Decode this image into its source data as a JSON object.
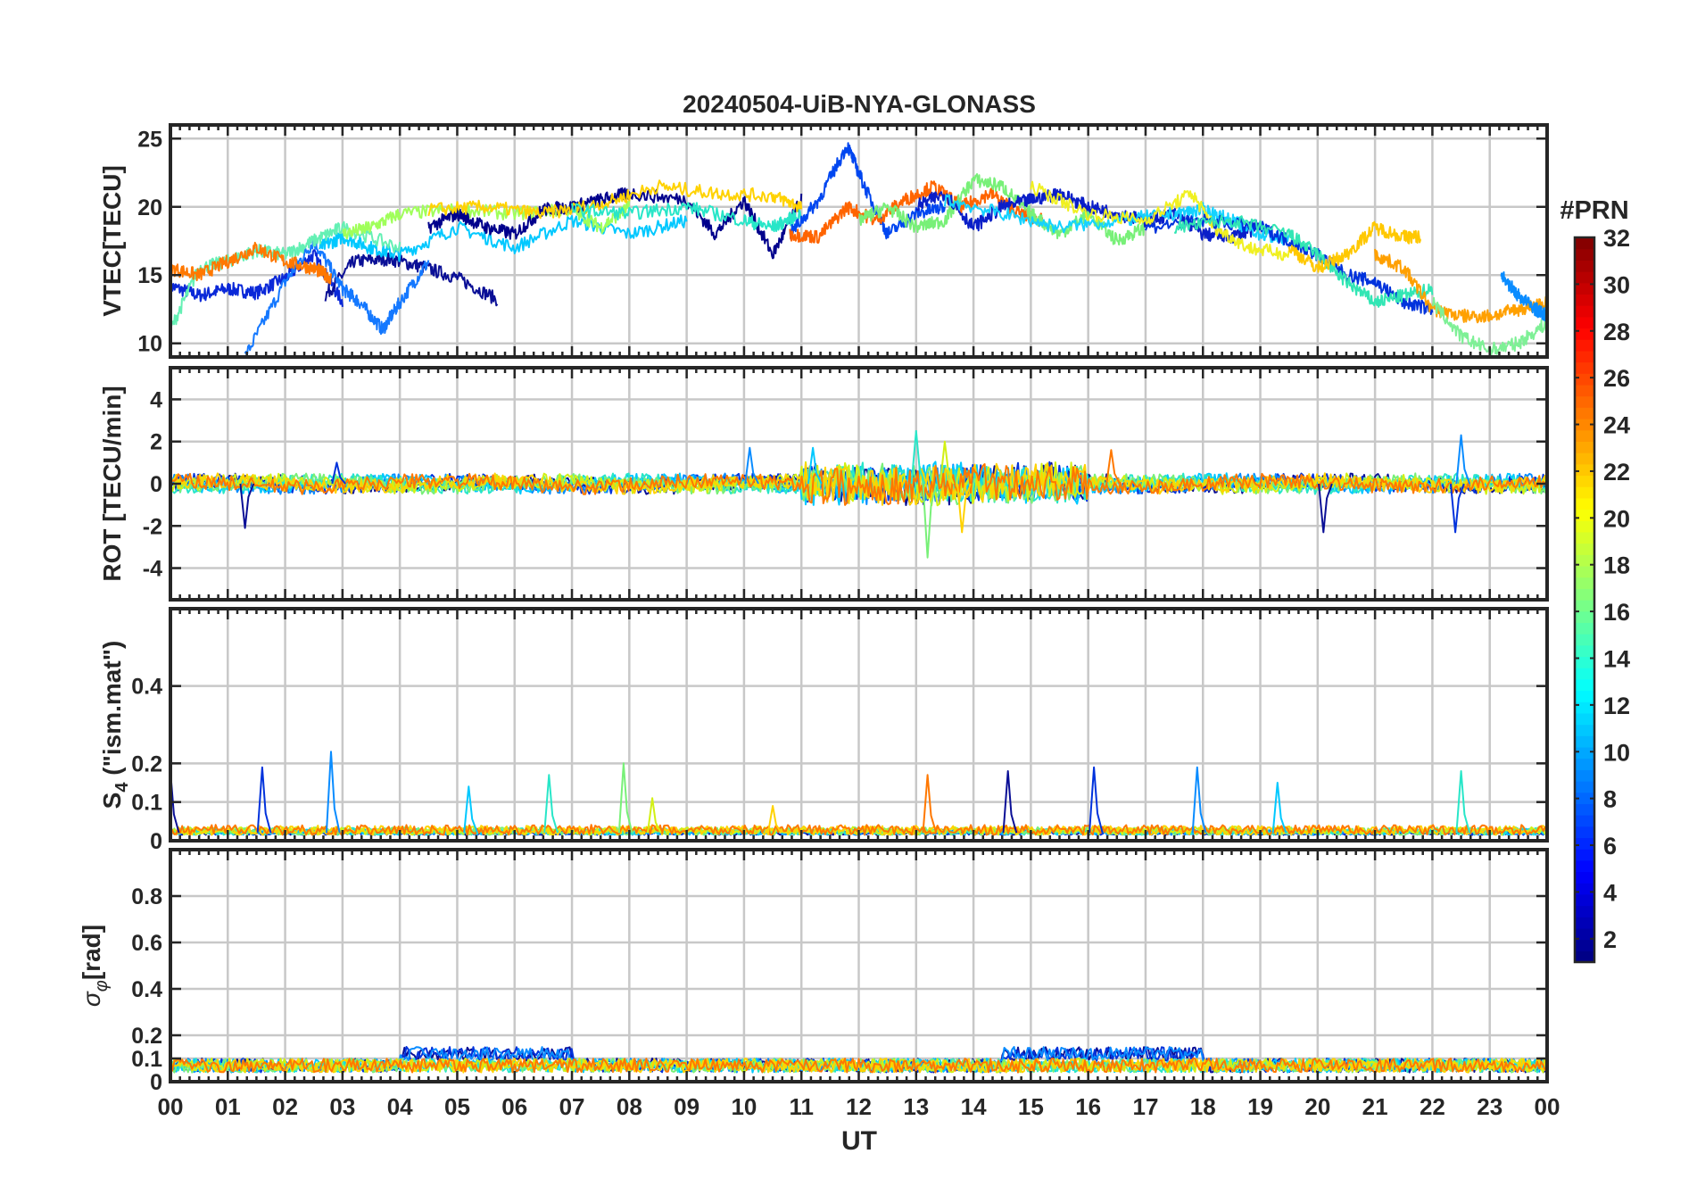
{
  "chart_data": {
    "type": "line",
    "title": "20240504-UiB-NYA-GLONASS",
    "xlabel": "UT",
    "x_tick_labels": [
      "00",
      "01",
      "02",
      "03",
      "04",
      "05",
      "06",
      "07",
      "08",
      "09",
      "10",
      "11",
      "12",
      "13",
      "14",
      "15",
      "16",
      "17",
      "18",
      "19",
      "20",
      "21",
      "22",
      "23",
      "00"
    ],
    "xlim_hours": [
      0,
      24
    ],
    "grid": true,
    "panels": [
      {
        "id": "vtec",
        "ylabel": "VTEC[TECU]",
        "ylim": [
          9,
          26
        ],
        "yticks": [
          10,
          15,
          20,
          25
        ],
        "ytick_labels": [
          "10",
          "15",
          "20",
          "25"
        ],
        "series": [
          {
            "prn": 4,
            "color": "#0a28d8",
            "x": [
              0.0,
              0.5,
              1.0,
              1.5,
              2.0,
              2.5,
              3.0
            ],
            "y": [
              14.2,
              13.5,
              14.0,
              13.7,
              14.8,
              16.5,
              13.0
            ]
          },
          {
            "prn": 2,
            "color": "#0a0f96",
            "x": [
              2.7,
              3.2,
              3.8,
              4.4,
              5.0,
              5.7
            ],
            "y": [
              13.5,
              16.0,
              16.2,
              15.6,
              14.8,
              13.2
            ]
          },
          {
            "prn": 8,
            "color": "#1478ff",
            "x": [
              1.3,
              2.0,
              2.5,
              3.0,
              3.3,
              3.7,
              4.0,
              4.5
            ],
            "y": [
              9.0,
              14.5,
              17.5,
              14.0,
              13.0,
              11.0,
              13.0,
              16.0
            ]
          },
          {
            "prn": 11,
            "color": "#00c8ff",
            "x": [
              2.6,
              3.0,
              3.5,
              4.0,
              5.0,
              6.0,
              7.0,
              8.0,
              9.0
            ],
            "y": [
              17.0,
              17.8,
              17.0,
              16.5,
              18.5,
              17.0,
              19.0,
              18.0,
              19.0
            ]
          },
          {
            "prn": 15,
            "color": "#64f0b4",
            "x": [
              0.0,
              0.5,
              1.0,
              1.5,
              2.0,
              2.5,
              3.0,
              4.0
            ],
            "y": [
              11.0,
              15.5,
              16.0,
              16.8,
              16.5,
              17.5,
              18.5,
              17.0
            ]
          },
          {
            "prn": 23,
            "color": "#ff7800",
            "x": [
              0.0,
              0.5,
              1.0,
              1.5,
              2.0,
              2.5,
              2.8
            ],
            "y": [
              15.5,
              15.0,
              16.0,
              17.0,
              16.0,
              15.5,
              14.8
            ]
          },
          {
            "prn": 16,
            "color": "#a0ff5a",
            "x": [
              3.0,
              3.5,
              4.0,
              5.0,
              6.0,
              7.0,
              7.5,
              8.0
            ],
            "y": [
              18.0,
              18.5,
              19.5,
              19.8,
              19.5,
              19.8,
              18.5,
              20.0
            ]
          },
          {
            "prn": 1,
            "color": "#00008c",
            "x": [
              4.5,
              5.0,
              5.5,
              6.0,
              6.5,
              7.0,
              7.5,
              8.0,
              9.0,
              9.5,
              10.0,
              10.5,
              11.0
            ],
            "y": [
              18.5,
              19.5,
              18.5,
              18.0,
              19.8,
              20.0,
              20.5,
              21.0,
              20.5,
              18.0,
              20.5,
              16.5,
              20.5
            ]
          },
          {
            "prn": 20,
            "color": "#ffd200",
            "x": [
              4.5,
              5.5,
              6.5,
              7.5,
              8.5,
              9.5,
              10.5,
              11.0
            ],
            "y": [
              19.8,
              20.0,
              19.5,
              20.2,
              21.5,
              21.0,
              20.8,
              20.0
            ]
          },
          {
            "prn": 13,
            "color": "#28e6c8",
            "x": [
              7.0,
              8.0,
              9.0,
              10.0,
              10.5,
              11.0
            ],
            "y": [
              19.8,
              19.5,
              20.0,
              19.0,
              18.5,
              19.5
            ]
          },
          {
            "prn": 6,
            "color": "#0046f0",
            "x": [
              10.8,
              11.3,
              11.8,
              12.1,
              12.5,
              13.0,
              13.5
            ],
            "y": [
              18.0,
              20.5,
              24.5,
              21.5,
              18.0,
              19.5,
              20.0
            ]
          },
          {
            "prn": 24,
            "color": "#ff6400",
            "x": [
              10.8,
              11.3,
              11.8,
              12.3,
              12.8,
              13.3,
              13.8,
              14.3,
              14.8,
              15.2
            ],
            "y": [
              18.0,
              17.8,
              20.0,
              19.0,
              20.5,
              21.5,
              20.0,
              21.0,
              19.5,
              19.0
            ]
          },
          {
            "prn": 17,
            "color": "#78f078",
            "x": [
              12.0,
              12.5,
              13.0,
              13.5,
              14.0,
              14.5,
              15.0,
              15.5,
              16.0,
              16.5,
              17.0
            ],
            "y": [
              19.0,
              20.0,
              18.5,
              19.0,
              22.0,
              21.5,
              19.5,
              18.0,
              19.5,
              17.5,
              18.5
            ]
          },
          {
            "prn": 3,
            "color": "#0a1ec8",
            "x": [
              13.0,
              13.5,
              14.0,
              14.5,
              15.0,
              15.5,
              16.0,
              16.5,
              17.0,
              17.5,
              18.0,
              18.5,
              19.0
            ],
            "y": [
              20.0,
              21.0,
              18.5,
              20.0,
              20.5,
              21.0,
              20.0,
              19.5,
              19.0,
              19.5,
              18.0,
              17.8,
              18.5
            ]
          },
          {
            "prn": 12,
            "color": "#14d2ff",
            "x": [
              13.5,
              14.5,
              15.5,
              16.5,
              17.5,
              18.0,
              18.5,
              19.0,
              19.5
            ],
            "y": [
              20.5,
              19.5,
              18.5,
              19.0,
              19.5,
              19.8,
              19.0,
              18.0,
              17.5
            ]
          },
          {
            "prn": 19,
            "color": "#f0f020",
            "x": [
              15.0,
              16.0,
              17.0,
              17.8,
              18.2,
              18.8,
              19.5
            ],
            "y": [
              21.5,
              19.5,
              19.0,
              21.0,
              18.5,
              17.0,
              16.5
            ]
          },
          {
            "prn": 5,
            "color": "#0032dc",
            "x": [
              17.0,
              18.0,
              19.0,
              19.5,
              20.0,
              20.5,
              21.0,
              21.5,
              22.0
            ],
            "y": [
              18.5,
              19.0,
              18.5,
              17.5,
              16.5,
              15.0,
              14.5,
              13.0,
              12.5
            ]
          },
          {
            "prn": 14,
            "color": "#32e6b4",
            "x": [
              17.5,
              18.5,
              19.5,
              20.0,
              20.5,
              21.0,
              21.5,
              22.0
            ],
            "y": [
              18.5,
              19.0,
              18.0,
              16.5,
              14.5,
              13.0,
              13.5,
              14.0
            ]
          },
          {
            "prn": 21,
            "color": "#ffc800",
            "x": [
              19.5,
              20.0,
              20.5,
              21.0,
              21.5,
              21.8
            ],
            "y": [
              17.0,
              15.5,
              16.5,
              18.5,
              17.8,
              17.8
            ]
          },
          {
            "prn": 22,
            "color": "#ffa000",
            "x": [
              21.0,
              21.5,
              22.0,
              22.5,
              23.0,
              23.5,
              24.0
            ],
            "y": [
              16.5,
              15.5,
              12.5,
              12.0,
              12.0,
              12.5,
              13.0
            ]
          },
          {
            "prn": 15,
            "color": "#7ef096",
            "x": [
              22.0,
              22.5,
              23.0,
              23.5,
              24.0
            ],
            "y": [
              13.0,
              10.5,
              9.5,
              10.0,
              11.5
            ]
          },
          {
            "prn": 9,
            "color": "#0a8cff",
            "x": [
              23.2,
              23.5,
              23.8,
              24.0
            ],
            "y": [
              15.0,
              13.5,
              12.5,
              12.0
            ]
          }
        ]
      },
      {
        "id": "rot",
        "ylabel": "ROT [TECU/min]",
        "ylim": [
          -5.5,
          5.5
        ],
        "yticks": [
          -4,
          -2,
          0,
          2,
          4
        ],
        "ytick_labels": [
          "-4",
          "-2",
          "0",
          "2",
          "4"
        ],
        "noise": {
          "base_amplitude": 0.35,
          "disturbed_hours": [
            11,
            16
          ],
          "disturbed_amplitude": 0.9
        },
        "spikes": [
          {
            "x": 1.3,
            "y": -2.1
          },
          {
            "x": 2.9,
            "y": 1.0
          },
          {
            "x": 10.1,
            "y": 1.7
          },
          {
            "x": 11.2,
            "y": 1.7
          },
          {
            "x": 13.0,
            "y": 2.5
          },
          {
            "x": 13.2,
            "y": -3.5
          },
          {
            "x": 13.5,
            "y": 2.0
          },
          {
            "x": 13.8,
            "y": -2.3
          },
          {
            "x": 16.4,
            "y": 1.6
          },
          {
            "x": 20.1,
            "y": -2.3
          },
          {
            "x": 22.4,
            "y": -2.3
          },
          {
            "x": 22.5,
            "y": 2.3
          }
        ]
      },
      {
        "id": "s4",
        "ylabel_main": "S",
        "ylabel_sub": "4",
        "ylabel_rest": " (\"ism.mat\")",
        "ylim": [
          0,
          0.6
        ],
        "yticks": [
          0,
          0.1,
          0.2,
          0.4
        ],
        "ytick_labels": [
          "0",
          "0.1",
          "0.2",
          "0.4"
        ],
        "noise": {
          "base_level": 0.015,
          "amplitude": 0.02
        },
        "spikes": [
          {
            "x": 0.0,
            "y": 0.18
          },
          {
            "x": 1.6,
            "y": 0.19
          },
          {
            "x": 2.8,
            "y": 0.23
          },
          {
            "x": 5.2,
            "y": 0.14
          },
          {
            "x": 6.6,
            "y": 0.17
          },
          {
            "x": 7.9,
            "y": 0.2
          },
          {
            "x": 8.4,
            "y": 0.11
          },
          {
            "x": 10.5,
            "y": 0.09
          },
          {
            "x": 13.2,
            "y": 0.17
          },
          {
            "x": 14.6,
            "y": 0.18
          },
          {
            "x": 16.1,
            "y": 0.19
          },
          {
            "x": 17.9,
            "y": 0.19
          },
          {
            "x": 19.3,
            "y": 0.15
          },
          {
            "x": 22.5,
            "y": 0.18
          }
        ]
      },
      {
        "id": "sigmaphi",
        "ylabel_main": "σ",
        "ylabel_sub": "φ",
        "ylabel_rest": "[rad]",
        "ylim": [
          0,
          1.0
        ],
        "yticks": [
          0,
          0.1,
          0.2,
          0.4,
          0.6,
          0.8
        ],
        "ytick_labels": [
          "0",
          "0.1",
          "0.2",
          "0.4",
          "0.6",
          "0.8"
        ],
        "noise": {
          "base_level": 0.07,
          "amplitude": 0.05
        },
        "bumps": [
          {
            "from": 4.0,
            "to": 7.0,
            "level": 0.12
          },
          {
            "from": 14.5,
            "to": 18.0,
            "level": 0.12
          }
        ]
      }
    ],
    "colorbar": {
      "label": "#PRN",
      "range": [
        1,
        32
      ],
      "tick_values": [
        2,
        4,
        6,
        8,
        10,
        12,
        14,
        16,
        18,
        20,
        22,
        24,
        26,
        28,
        30,
        32
      ],
      "tick_labels": [
        "2",
        "4",
        "6",
        "8",
        "10",
        "12",
        "14",
        "16",
        "18",
        "20",
        "22",
        "24",
        "26",
        "28",
        "30",
        "32"
      ],
      "colormap": "jet"
    }
  }
}
